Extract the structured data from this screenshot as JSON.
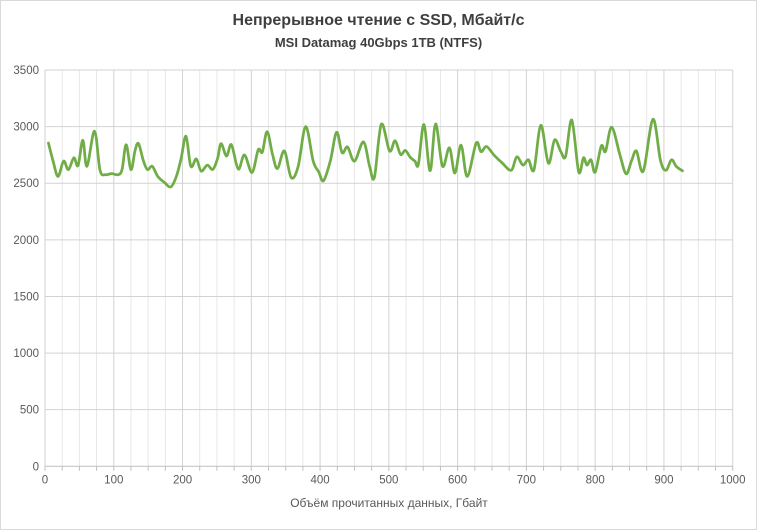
{
  "chart_data": {
    "type": "line",
    "title": "Непрерывное чтение с SSD, Мбайт/с",
    "subtitle": "MSI Datamag 40Gbps 1TB (NTFS)",
    "xlabel": "Объём прочитанных данных, Гбайт",
    "ylabel": "",
    "xlim": [
      0,
      1000
    ],
    "ylim": [
      0,
      3500
    ],
    "x_ticks": [
      0,
      100,
      200,
      300,
      400,
      500,
      600,
      700,
      800,
      900,
      1000
    ],
    "y_ticks": [
      0,
      500,
      1000,
      1500,
      2000,
      2500,
      3000,
      3500
    ],
    "x_minor_step": 25,
    "grid": true,
    "legend": false,
    "smooth": true,
    "series": [
      {
        "name": "MSI Datamag 40Gbps 1TB (NTFS)",
        "points": [
          [
            5,
            2855
          ],
          [
            12,
            2690
          ],
          [
            19,
            2560
          ],
          [
            27,
            2695
          ],
          [
            34,
            2620
          ],
          [
            42,
            2725
          ],
          [
            48,
            2655
          ],
          [
            55,
            2880
          ],
          [
            61,
            2650
          ],
          [
            72,
            2960
          ],
          [
            80,
            2615
          ],
          [
            88,
            2575
          ],
          [
            97,
            2585
          ],
          [
            106,
            2575
          ],
          [
            112,
            2620
          ],
          [
            118,
            2840
          ],
          [
            125,
            2620
          ],
          [
            131,
            2790
          ],
          [
            136,
            2850
          ],
          [
            143,
            2700
          ],
          [
            149,
            2620
          ],
          [
            156,
            2650
          ],
          [
            164,
            2560
          ],
          [
            174,
            2505
          ],
          [
            183,
            2468
          ],
          [
            191,
            2560
          ],
          [
            198,
            2720
          ],
          [
            205,
            2915
          ],
          [
            212,
            2650
          ],
          [
            220,
            2715
          ],
          [
            227,
            2607
          ],
          [
            236,
            2660
          ],
          [
            244,
            2622
          ],
          [
            251,
            2720
          ],
          [
            256,
            2850
          ],
          [
            264,
            2740
          ],
          [
            271,
            2840
          ],
          [
            281,
            2625
          ],
          [
            290,
            2750
          ],
          [
            301,
            2595
          ],
          [
            310,
            2795
          ],
          [
            316,
            2775
          ],
          [
            323,
            2955
          ],
          [
            331,
            2750
          ],
          [
            338,
            2630
          ],
          [
            348,
            2785
          ],
          [
            358,
            2550
          ],
          [
            368,
            2645
          ],
          [
            379,
            3000
          ],
          [
            390,
            2695
          ],
          [
            398,
            2600
          ],
          [
            405,
            2522
          ],
          [
            415,
            2700
          ],
          [
            424,
            2950
          ],
          [
            432,
            2770
          ],
          [
            440,
            2820
          ],
          [
            450,
            2695
          ],
          [
            463,
            2865
          ],
          [
            472,
            2650
          ],
          [
            479,
            2553
          ],
          [
            489,
            3020
          ],
          [
            501,
            2785
          ],
          [
            509,
            2875
          ],
          [
            517,
            2755
          ],
          [
            524,
            2790
          ],
          [
            531,
            2730
          ],
          [
            538,
            2695
          ],
          [
            543,
            2668
          ],
          [
            551,
            3018
          ],
          [
            560,
            2610
          ],
          [
            568,
            3024
          ],
          [
            578,
            2650
          ],
          [
            588,
            2813
          ],
          [
            596,
            2590
          ],
          [
            605,
            2836
          ],
          [
            614,
            2560
          ],
          [
            627,
            2855
          ],
          [
            634,
            2778
          ],
          [
            642,
            2824
          ],
          [
            653,
            2748
          ],
          [
            665,
            2678
          ],
          [
            678,
            2615
          ],
          [
            686,
            2733
          ],
          [
            695,
            2660
          ],
          [
            703,
            2707
          ],
          [
            711,
            2618
          ],
          [
            721,
            3012
          ],
          [
            732,
            2677
          ],
          [
            741,
            2883
          ],
          [
            750,
            2780
          ],
          [
            757,
            2738
          ],
          [
            766,
            3058
          ],
          [
            776,
            2601
          ],
          [
            783,
            2725
          ],
          [
            788,
            2660
          ],
          [
            794,
            2707
          ],
          [
            800,
            2598
          ],
          [
            809,
            2830
          ],
          [
            815,
            2780
          ],
          [
            824,
            2995
          ],
          [
            836,
            2750
          ],
          [
            845,
            2583
          ],
          [
            853,
            2700
          ],
          [
            860,
            2784
          ],
          [
            870,
            2607
          ],
          [
            884,
            3065
          ],
          [
            895,
            2700
          ],
          [
            903,
            2615
          ],
          [
            911,
            2707
          ],
          [
            918,
            2648
          ],
          [
            927,
            2610
          ]
        ]
      }
    ]
  },
  "colors": {
    "line": "#70AD47",
    "grid_major": "#d2d2d2",
    "grid_minor": "#e7e7e7",
    "axis_line": "#bfbfbf",
    "tick_mark": "#bfbfbf",
    "tick_label": "#595959",
    "title_text": "#3f3f3f",
    "frame_border": "#d9d9d9"
  }
}
